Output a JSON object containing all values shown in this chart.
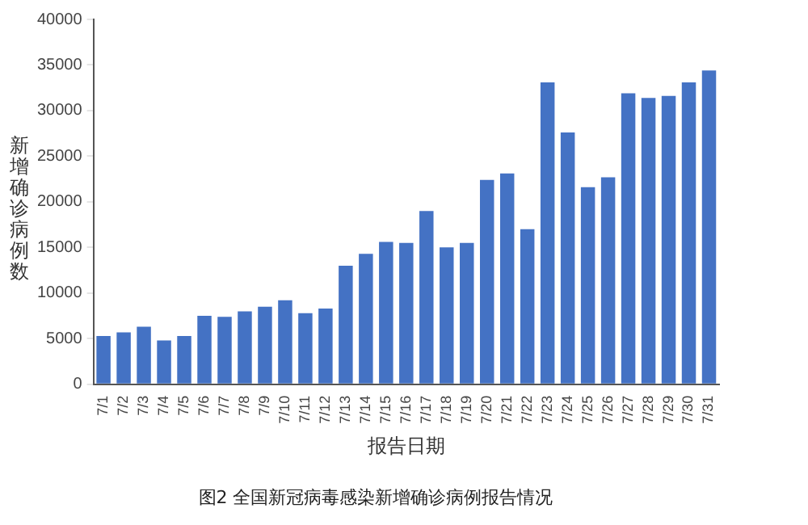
{
  "chart_data": {
    "type": "bar",
    "title": "图2 全国新冠病毒感染新增确诊病例报告情况",
    "xlabel": "报告日期",
    "ylabel": "新增确诊病例数",
    "categories": [
      "7/1",
      "7/2",
      "7/3",
      "7/4",
      "7/5",
      "7/6",
      "7/7",
      "7/8",
      "7/9",
      "7/10",
      "7/11",
      "7/12",
      "7/13",
      "7/14",
      "7/15",
      "7/16",
      "7/17",
      "7/18",
      "7/19",
      "7/20",
      "7/21",
      "7/22",
      "7/23",
      "7/24",
      "7/25",
      "7/26",
      "7/27",
      "7/28",
      "7/29",
      "7/30",
      "7/31"
    ],
    "values": [
      5300,
      5700,
      6300,
      4800,
      5300,
      7500,
      7400,
      8000,
      8500,
      9200,
      7800,
      8300,
      13000,
      14300,
      15600,
      15500,
      19000,
      15000,
      15500,
      22400,
      23100,
      17000,
      33100,
      27600,
      21600,
      22700,
      31900,
      31400,
      31600,
      33100,
      34400
    ],
    "color": "#4472c4",
    "ylim": [
      0,
      40000
    ],
    "yticks": [
      0,
      5000,
      10000,
      15000,
      20000,
      25000,
      30000,
      35000,
      40000
    ],
    "grid": false,
    "legend": false
  }
}
